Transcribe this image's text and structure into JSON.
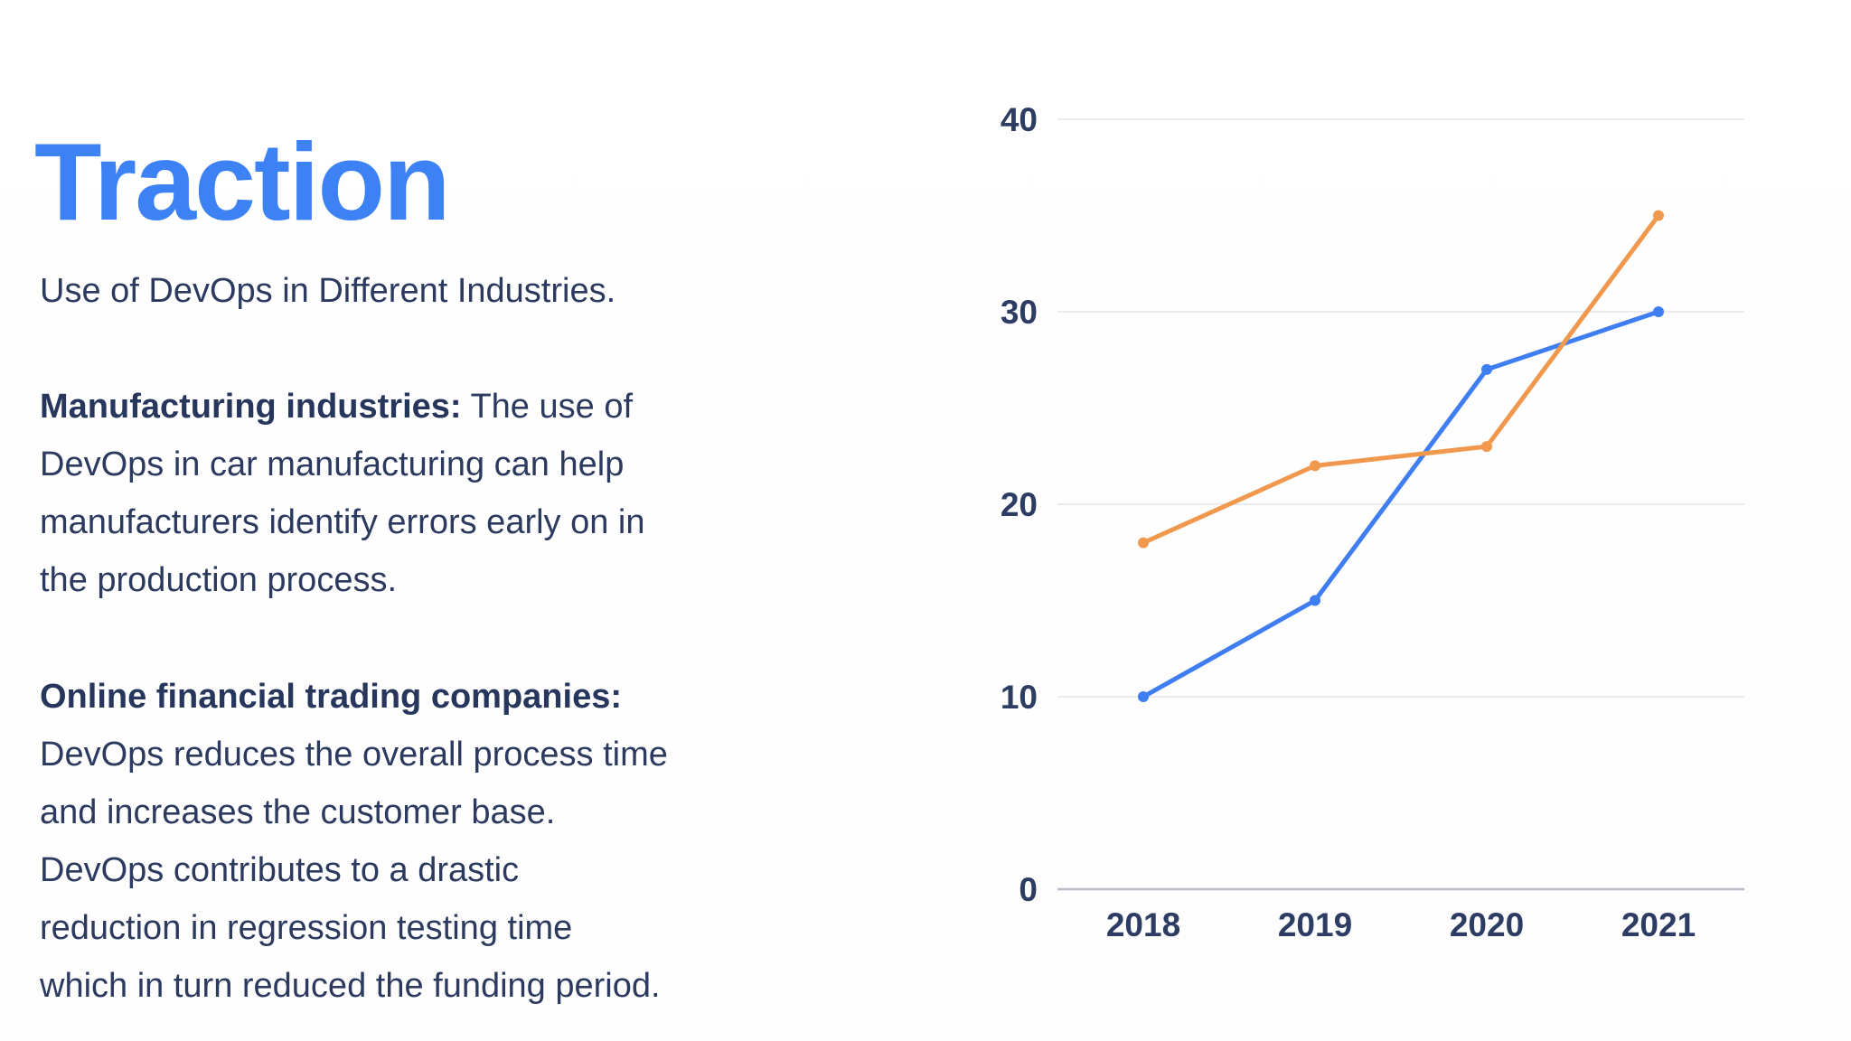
{
  "left": {
    "title": "Traction",
    "intro": "Use of DevOps in Different Industries.",
    "para1": {
      "bold_label": "Manufacturing industries:",
      "lines": [
        "The use of",
        "DevOps in car manufacturing can help",
        "manufacturers identify errors early on in",
        "the production process."
      ]
    },
    "para2": {
      "bold_label": "Online financial trading companies:",
      "lines": [
        "DevOps reduces the overall process time",
        "and increases the customer base.",
        "DevOps contributes to a drastic",
        "reduction in regression testing time",
        "which in turn reduced the funding period."
      ]
    }
  },
  "chart_data": {
    "type": "line",
    "title": "",
    "xlabel": "",
    "ylabel": "",
    "categories": [
      "2018",
      "2019",
      "2020",
      "2021"
    ],
    "series": [
      {
        "name": "blue-series",
        "color": "#3f7df2",
        "values": [
          10,
          15,
          27,
          30
        ]
      },
      {
        "name": "orange-series",
        "color": "#f0994e",
        "values": [
          18,
          22,
          23,
          35
        ]
      }
    ],
    "ylim": [
      0,
      40
    ],
    "yticks": [
      0,
      10,
      20,
      30,
      40
    ],
    "grid": true,
    "legend_position": "none",
    "colors": {
      "gridline": "#e4e4ea",
      "zero_axis": "#b9bcc6",
      "tick_label": "#2d3c63",
      "title_accent": "#3d82f4",
      "body_text": "#2b3a5e"
    }
  }
}
